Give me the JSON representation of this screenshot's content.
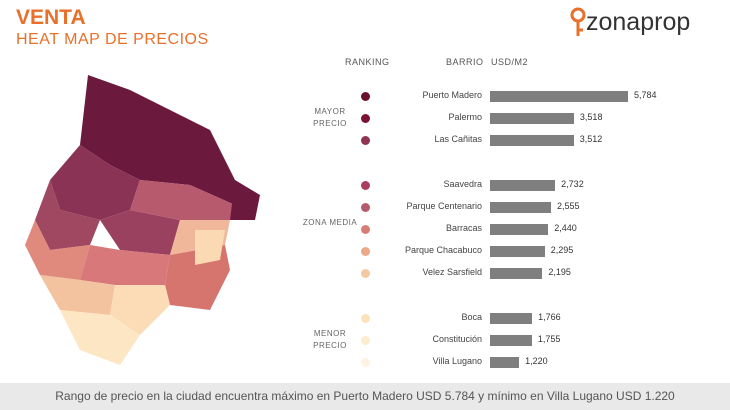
{
  "header": {
    "title": "VENTA",
    "subtitle": "HEAT MAP DE PRECIOS",
    "logo": "zonaprop"
  },
  "chart_data": {
    "type": "bar",
    "orientation": "horizontal",
    "bar_color": "#7f7f7f",
    "column_labels": [
      "RANKING",
      "BARRIO",
      "USD/M2"
    ],
    "groups": [
      {
        "label": "MAYOR PRECIO",
        "categories": [
          "Puerto Madero",
          "Palermo",
          "Las Cañitas"
        ],
        "values": [
          5784,
          3518,
          3512
        ],
        "value_labels": [
          "5,784",
          "3,518",
          "3,512"
        ],
        "colors": [
          "#6b0f2a",
          "#7a1430",
          "#8e3553"
        ]
      },
      {
        "label": "ZONA MEDIA",
        "categories": [
          "Saavedra",
          "Parque Centenario",
          "Barracas",
          "Parque Chacabuco",
          "Velez Sarsfield"
        ],
        "values": [
          2732,
          2555,
          2440,
          2295,
          2195
        ],
        "value_labels": [
          "2,732",
          "2,555",
          "2,440",
          "2,295",
          "2,195"
        ],
        "colors": [
          "#a83e5b",
          "#b65a6a",
          "#d67e75",
          "#eba98c",
          "#f5c9a0"
        ]
      },
      {
        "label": "MENOR PRECIO",
        "categories": [
          "Boca",
          "Constitución",
          "Villa Lugano"
        ],
        "values": [
          1766,
          1755,
          1220
        ],
        "value_labels": [
          "1,766",
          "1,755",
          "1,220"
        ],
        "colors": [
          "#fbe2b8",
          "#fdeccd",
          "#fdf3e0"
        ]
      }
    ]
  },
  "footer": "Rango de precio en la ciudad encuentra máximo en Puerto Madero USD 5.784 y mínimo en Villa Lugano USD 1.220"
}
